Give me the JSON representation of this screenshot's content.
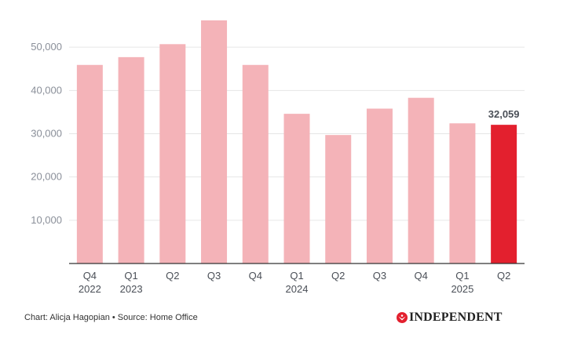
{
  "chart_data": {
    "type": "bar",
    "title": "",
    "xlabel": "",
    "ylabel": "",
    "ylim": [
      0,
      60000
    ],
    "y_ticks": [
      10000,
      20000,
      30000,
      40000,
      50000
    ],
    "y_tick_labels": [
      "10,000",
      "20,000",
      "30,000",
      "40,000",
      "50,000"
    ],
    "grid": true,
    "categories": [
      {
        "quarter": "Q4",
        "year": "2022"
      },
      {
        "quarter": "Q1",
        "year": "2023"
      },
      {
        "quarter": "Q2",
        "year": ""
      },
      {
        "quarter": "Q3",
        "year": ""
      },
      {
        "quarter": "Q4",
        "year": ""
      },
      {
        "quarter": "Q1",
        "year": "2024"
      },
      {
        "quarter": "Q2",
        "year": ""
      },
      {
        "quarter": "Q3",
        "year": ""
      },
      {
        "quarter": "Q4",
        "year": ""
      },
      {
        "quarter": "Q1",
        "year": "2025"
      },
      {
        "quarter": "Q2",
        "year": ""
      }
    ],
    "values": [
      45900,
      47700,
      50700,
      56200,
      45900,
      34600,
      29700,
      35800,
      38300,
      32400,
      32059
    ],
    "highlight_index": 10,
    "highlight_label": "32,059",
    "colors": {
      "bar": "#f4b3b8",
      "highlight": "#e3202e",
      "grid": "#e6e6e6",
      "axis": "#333333"
    }
  },
  "footer": {
    "credit": "Chart: Alicja Hagopian • Source: Home Office",
    "logo_text": "INDEPENDENT",
    "logo_icon": "eagle-icon"
  }
}
